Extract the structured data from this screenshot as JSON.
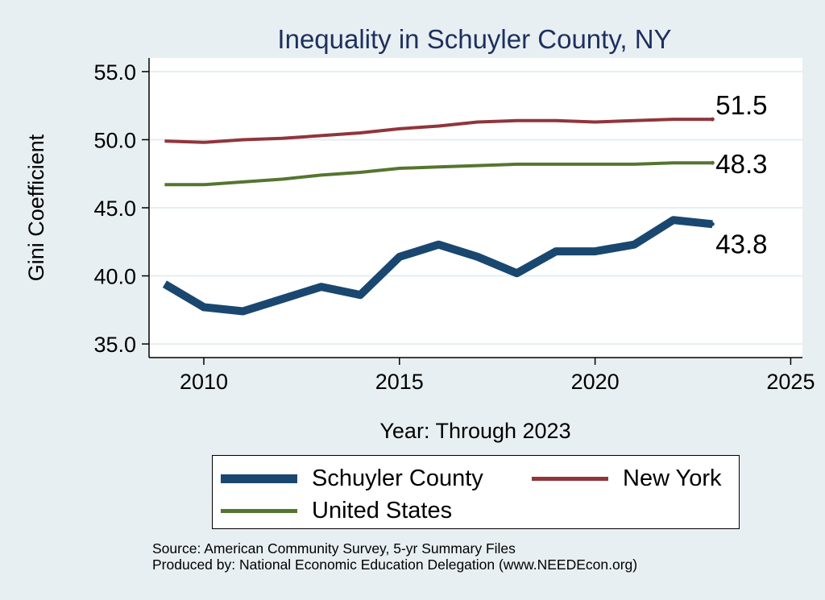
{
  "chart_data": {
    "type": "line",
    "title": "Inequality in Schuyler County, NY",
    "xlabel": "Year: Through 2023",
    "ylabel": "Gini Coefficient",
    "xlim": [
      2008.6,
      2025.3
    ],
    "ylim": [
      34.0,
      56.0
    ],
    "xticks": [
      2010,
      2015,
      2020,
      2025
    ],
    "yticks": [
      35.0,
      40.0,
      45.0,
      50.0,
      55.0
    ],
    "grid": true,
    "x": [
      2009,
      2010,
      2011,
      2012,
      2013,
      2014,
      2015,
      2016,
      2017,
      2018,
      2019,
      2020,
      2021,
      2022,
      2023
    ],
    "series": [
      {
        "name": "Schuyler County",
        "color": "#1a476f",
        "width": 10,
        "values": [
          39.4,
          37.7,
          37.4,
          38.3,
          39.2,
          38.6,
          41.4,
          42.3,
          41.4,
          40.2,
          41.8,
          41.8,
          42.3,
          44.1,
          43.8
        ],
        "end_label": "43.8",
        "end_label_position": "below"
      },
      {
        "name": "New York",
        "color": "#90353b",
        "width": 4,
        "values": [
          49.9,
          49.8,
          50.0,
          50.1,
          50.3,
          50.5,
          50.8,
          51.0,
          51.3,
          51.4,
          51.4,
          51.3,
          51.4,
          51.5,
          51.5
        ],
        "end_label": "51.5",
        "end_label_position": "above"
      },
      {
        "name": "United States",
        "color": "#55752f",
        "width": 4,
        "values": [
          46.7,
          46.7,
          46.9,
          47.1,
          47.4,
          47.6,
          47.9,
          48.0,
          48.1,
          48.2,
          48.2,
          48.2,
          48.2,
          48.3,
          48.3
        ],
        "end_label": "48.3",
        "end_label_position": "right"
      }
    ],
    "legend_position": "bottom"
  },
  "source_lines": [
    "Source: American Community Survey, 5-yr Summary Files",
    "Produced by: National Economic Education Delegation (www.NEEDEcon.org)"
  ]
}
